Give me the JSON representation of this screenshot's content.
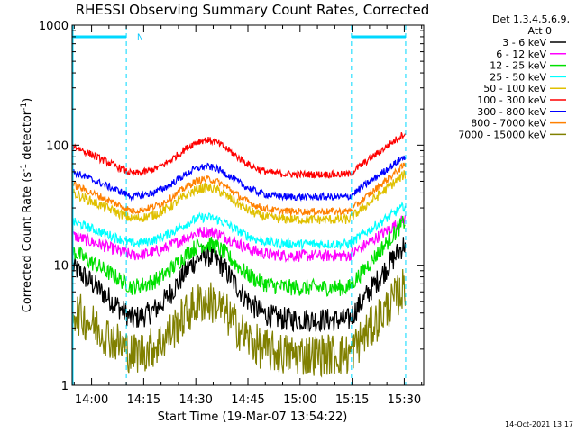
{
  "chart_data": {
    "type": "line",
    "title": "RHESSI Observing Summary Count Rates, Corrected",
    "xlabel": "Start Time (19-Mar-07 13:54:22)",
    "ylabel_main": "Corrected Count Rate (s",
    "ylabel_sup1": "-1",
    "ylabel_mid": " detector",
    "ylabel_sup2": "-1",
    "ylabel_end": ")",
    "yscale": "log",
    "ylim": [
      1,
      1000
    ],
    "ytick_labels": [
      "1",
      "10",
      "100",
      "1000"
    ],
    "ytick_values": [
      1,
      10,
      100,
      1000
    ],
    "xlim_minutes": [
      -5.6,
      95.6
    ],
    "xtick_labels": [
      "14:00",
      "14:15",
      "14:30",
      "14:45",
      "15:00",
      "15:15",
      "15:30"
    ],
    "xtick_minutes": [
      0,
      15,
      30,
      45,
      60,
      75,
      90
    ],
    "legend_header": [
      "Det 1,3,4,5,6,9,",
      "Att 0"
    ],
    "legend_position": "right",
    "night_marker_label": "N",
    "night_bars_minutes": [
      [
        -5.6,
        10
      ],
      [
        74.8,
        90.4
      ]
    ],
    "dashed_lines_minutes": [
      10,
      74.8,
      90.4
    ],
    "timestamp": "14-Oct-2021 13:17",
    "series": [
      {
        "name": "3 - 6 keV",
        "color": "#000000",
        "base": 3.5,
        "hump": 12,
        "end": 15,
        "noise": 0.1
      },
      {
        "name": "6 - 12 keV",
        "color": "#ff00ff",
        "base": 12,
        "hump": 19,
        "end": 24,
        "noise": 0.05
      },
      {
        "name": "12 - 25 keV",
        "color": "#00e000",
        "base": 6.5,
        "hump": 15,
        "end": 23,
        "noise": 0.07
      },
      {
        "name": "25 - 50 keV",
        "color": "#00ffff",
        "base": 15,
        "hump": 25,
        "end": 31,
        "noise": 0.04
      },
      {
        "name": "50 - 100 keV",
        "color": "#e0c000",
        "base": 24,
        "hump": 44,
        "end": 57,
        "noise": 0.04
      },
      {
        "name": "100 - 300 keV",
        "color": "#ff0000",
        "base": 57,
        "hump": 110,
        "end": 125,
        "noise": 0.03
      },
      {
        "name": "300 - 800 keV",
        "color": "#0000ff",
        "base": 37,
        "hump": 66,
        "end": 80,
        "noise": 0.03
      },
      {
        "name": "800 - 7000 keV",
        "color": "#ff8000",
        "base": 28,
        "hump": 52,
        "end": 68,
        "noise": 0.03
      },
      {
        "name": "7000 - 15000 keV",
        "color": "#808000",
        "base": 1.8,
        "hump": 5,
        "end": 6.5,
        "noise": 0.18
      }
    ]
  }
}
